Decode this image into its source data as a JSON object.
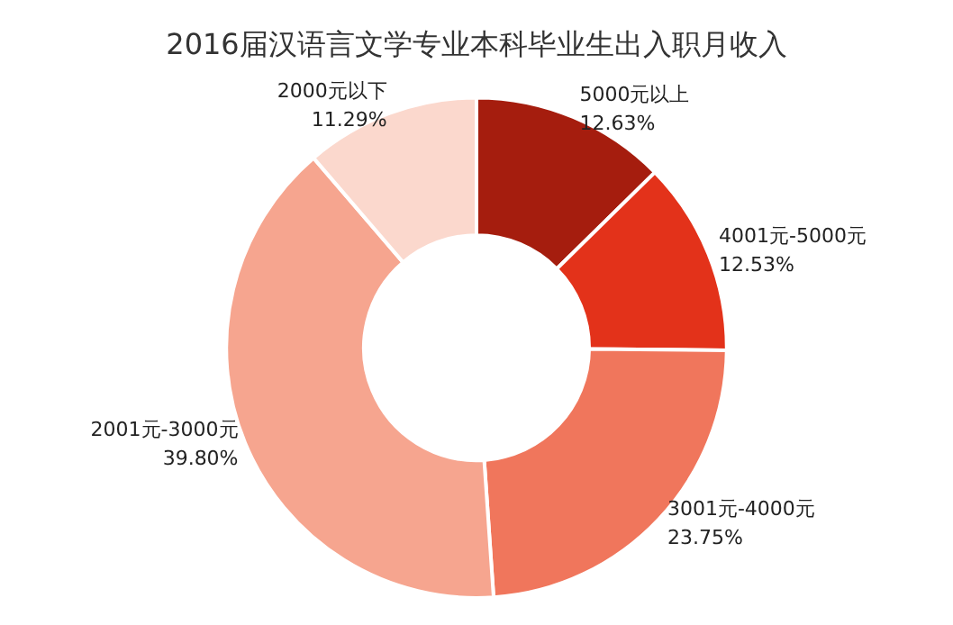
{
  "chart_data": {
    "type": "donut",
    "title": "2016届汉语言文学专业本科毕业生出入职月收入",
    "categories": [
      "5000元以上",
      "4001元-5000元",
      "3001元-4000元",
      "2001元-3000元",
      "2000元以下"
    ],
    "values": [
      12.63,
      12.53,
      23.75,
      39.8,
      11.29
    ],
    "value_labels": [
      "12.63%",
      "12.53%",
      "23.75%",
      "39.80%",
      "11.29%"
    ],
    "colors": [
      "#a51d0e",
      "#e3321a",
      "#f0765c",
      "#f6a58f",
      "#fbd8cd"
    ],
    "legend": false
  }
}
